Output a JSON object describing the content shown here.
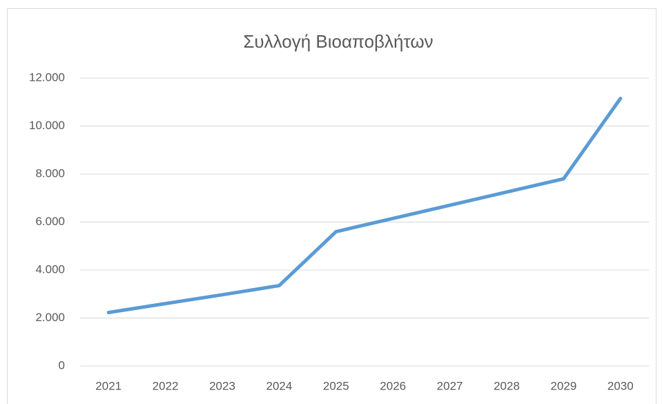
{
  "chart_data": {
    "type": "line",
    "title": "Συλλογή Βιοαποβλήτων",
    "categories": [
      "2021",
      "2022",
      "2023",
      "2024",
      "2025",
      "2026",
      "2027",
      "2028",
      "2029",
      "2030"
    ],
    "values": [
      2230,
      2600,
      2970,
      3350,
      5600,
      6150,
      6700,
      7250,
      7800,
      11150
    ],
    "color": "#5b9bd5",
    "ylim": [
      0,
      12000
    ],
    "yticks": [
      0,
      {
        "value": 2000,
        "label": "2.000"
      },
      {
        "value": 4000,
        "label": "4.000"
      },
      {
        "value": 6000,
        "label": "6.000"
      },
      {
        "value": 8000,
        "label": "8.000"
      },
      {
        "value": 10000,
        "label": "10.000"
      },
      {
        "value": 12000,
        "label": "12.000"
      }
    ],
    "grid": true
  }
}
